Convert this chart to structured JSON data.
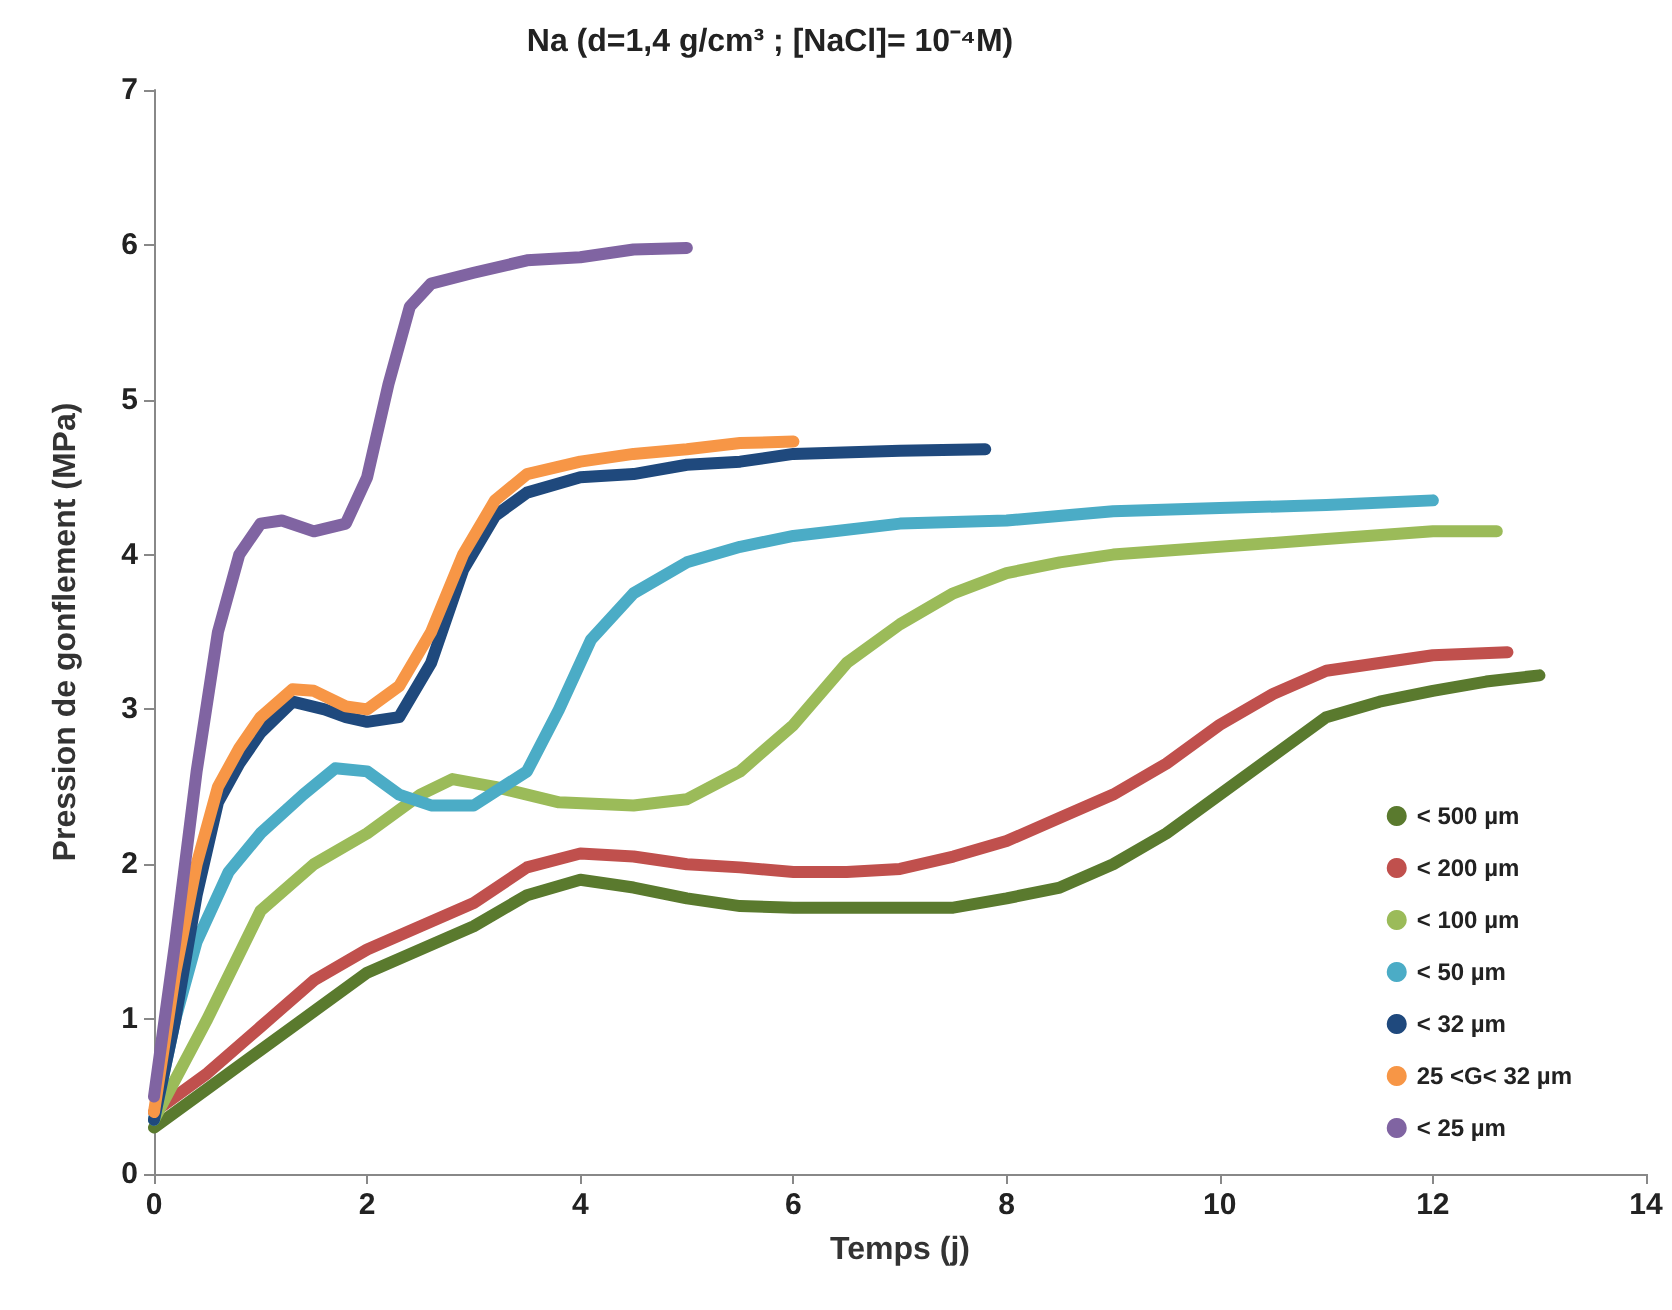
{
  "chart_data": {
    "type": "line",
    "title": "Na (d=1,4 g/cm³ ; [NaCl]= 10⁻⁴M)",
    "xlabel": "Temps (j)",
    "ylabel": "Pression de gonflement (MPa)",
    "xlim": [
      0,
      14
    ],
    "xticks": [
      0,
      2,
      4,
      6,
      8,
      10,
      12,
      14
    ],
    "ylim": [
      0,
      7
    ],
    "yticks": [
      0,
      1,
      2,
      3,
      4,
      5,
      6,
      7
    ],
    "grid": false,
    "legend": "bottom right",
    "series": [
      {
        "name": "< 500 µm",
        "color": "#5a7a2e",
        "x": [
          0,
          0.5,
          1,
          1.5,
          2,
          2.5,
          3,
          3.5,
          4,
          4.5,
          5,
          5.5,
          6,
          7,
          7.5,
          8,
          8.5,
          9,
          9.5,
          10,
          10.5,
          11,
          11.5,
          12,
          12.5,
          13
        ],
        "values": [
          0.3,
          0.55,
          0.8,
          1.05,
          1.3,
          1.45,
          1.6,
          1.8,
          1.9,
          1.85,
          1.78,
          1.73,
          1.72,
          1.72,
          1.72,
          1.78,
          1.85,
          2.0,
          2.2,
          2.45,
          2.7,
          2.95,
          3.05,
          3.12,
          3.18,
          3.22
        ]
      },
      {
        "name": "< 200 µm",
        "color": "#c0504d",
        "x": [
          0,
          0.5,
          1,
          1.5,
          2,
          2.5,
          3,
          3.5,
          4,
          4.5,
          5,
          5.5,
          6,
          6.5,
          7,
          7.5,
          8,
          8.5,
          9,
          9.5,
          10,
          10.5,
          11,
          11.5,
          12,
          12.7
        ],
        "values": [
          0.4,
          0.65,
          0.95,
          1.25,
          1.45,
          1.6,
          1.75,
          1.98,
          2.07,
          2.05,
          2.0,
          1.98,
          1.95,
          1.95,
          1.97,
          2.05,
          2.15,
          2.3,
          2.45,
          2.65,
          2.9,
          3.1,
          3.25,
          3.3,
          3.35,
          3.37
        ]
      },
      {
        "name": "< 100 µm",
        "color": "#9bbb59",
        "x": [
          0,
          0.5,
          1,
          1.5,
          2,
          2.5,
          2.8,
          3.2,
          3.8,
          4.5,
          5,
          5.5,
          6,
          6.5,
          7,
          7.5,
          8,
          8.5,
          9,
          10,
          11,
          12,
          12.6
        ],
        "values": [
          0.35,
          1.0,
          1.7,
          2.0,
          2.2,
          2.45,
          2.55,
          2.5,
          2.4,
          2.38,
          2.42,
          2.6,
          2.9,
          3.3,
          3.55,
          3.75,
          3.88,
          3.95,
          4.0,
          4.05,
          4.1,
          4.15,
          4.15
        ]
      },
      {
        "name": "< 50 µm",
        "color": "#4bacc6",
        "x": [
          0,
          0.2,
          0.4,
          0.7,
          1,
          1.4,
          1.7,
          2,
          2.3,
          2.6,
          3,
          3.5,
          3.8,
          4.1,
          4.5,
          5,
          5.5,
          6,
          7,
          8,
          9,
          10,
          11,
          12
        ],
        "values": [
          0.35,
          1.0,
          1.5,
          1.95,
          2.2,
          2.45,
          2.62,
          2.6,
          2.45,
          2.38,
          2.38,
          2.6,
          3.0,
          3.45,
          3.75,
          3.95,
          4.05,
          4.12,
          4.2,
          4.22,
          4.28,
          4.3,
          4.32,
          4.35
        ]
      },
      {
        "name": "< 32 µm",
        "color": "#1f497d",
        "x": [
          0,
          0.2,
          0.4,
          0.6,
          0.8,
          1,
          1.3,
          1.6,
          1.8,
          2,
          2.3,
          2.6,
          2.9,
          3.2,
          3.5,
          4,
          4.5,
          5,
          5.5,
          6,
          7,
          7.8
        ],
        "values": [
          0.35,
          1.0,
          1.8,
          2.4,
          2.65,
          2.85,
          3.05,
          3.0,
          2.95,
          2.92,
          2.95,
          3.3,
          3.9,
          4.25,
          4.4,
          4.5,
          4.52,
          4.58,
          4.6,
          4.65,
          4.67,
          4.68
        ]
      },
      {
        "name": "25 <G< 32 µm",
        "color": "#f79646",
        "x": [
          0,
          0.2,
          0.4,
          0.6,
          0.8,
          1,
          1.3,
          1.5,
          1.8,
          2,
          2.3,
          2.6,
          2.9,
          3.2,
          3.5,
          4,
          4.5,
          5,
          5.5,
          6
        ],
        "values": [
          0.4,
          1.3,
          2.0,
          2.5,
          2.75,
          2.95,
          3.13,
          3.12,
          3.02,
          3.0,
          3.15,
          3.5,
          4.0,
          4.35,
          4.52,
          4.6,
          4.65,
          4.68,
          4.72,
          4.73
        ]
      },
      {
        "name": "< 25 µm",
        "color": "#8064a2",
        "x": [
          0,
          0.2,
          0.4,
          0.6,
          0.8,
          1,
          1.2,
          1.5,
          1.8,
          2,
          2.2,
          2.4,
          2.6,
          3,
          3.5,
          4,
          4.5,
          5
        ],
        "values": [
          0.5,
          1.5,
          2.6,
          3.5,
          4.0,
          4.2,
          4.22,
          4.15,
          4.2,
          4.5,
          5.1,
          5.6,
          5.75,
          5.82,
          5.9,
          5.92,
          5.97,
          5.98
        ]
      }
    ]
  }
}
